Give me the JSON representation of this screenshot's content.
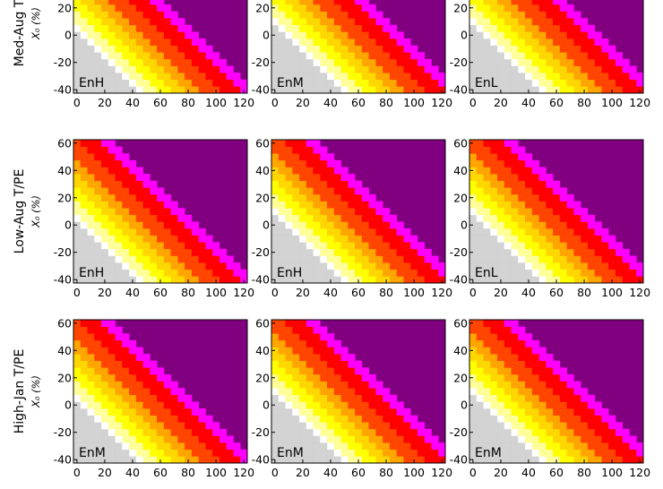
{
  "colors": {
    "gray": "#d3d3d3",
    "white": "#ffffff",
    "light_yellow": "#ffff99",
    "yellow": "#ffff00",
    "gold": "#ffd700",
    "orange": "#ffa500",
    "red_orange": "#ff4500",
    "red": "#ff0000",
    "magenta": "#ff00ff",
    "purple": "#800080"
  },
  "axis": {
    "x_ticks": [
      "0",
      "20",
      "40",
      "60",
      "80",
      "100",
      "120"
    ],
    "y_ticks": [
      "-40",
      "-20",
      "0",
      "20",
      "40",
      "60"
    ],
    "xlim": [
      -2.5,
      122.5
    ],
    "ylim": [
      -42.5,
      62.5
    ]
  },
  "rows": [
    {
      "label": "Med-Aug T/PE",
      "sublabel": "X₀ (%)",
      "panels": [
        {
          "tag": "EnH",
          "shift": 0
        },
        {
          "tag": "EnM",
          "shift": 1
        },
        {
          "tag": "EnL",
          "shift": 2
        }
      ]
    },
    {
      "label": "Low-Aug T/PE",
      "sublabel": "X₀ (%)",
      "panels": [
        {
          "tag": "EnH",
          "shift": 0
        },
        {
          "tag": "EnH",
          "shift": 1
        },
        {
          "tag": "EnL",
          "shift": 2
        }
      ]
    },
    {
      "label": "High-Jan T/PE",
      "sublabel": "X₀ (%)",
      "panels": [
        {
          "tag": "EnM",
          "shift": 0
        },
        {
          "tag": "EnM",
          "shift": 1
        },
        {
          "tag": "EnM",
          "shift": 1
        }
      ]
    }
  ],
  "chart_data": {
    "type": "heatmap",
    "panel_grid": [
      3,
      3
    ],
    "x_range": [
      0,
      120
    ],
    "y_range": [
      -40,
      60
    ],
    "cell_step": 5,
    "encoding": "color class depends on x + y; gray where x + y < ~5, purple where x + y > ~90",
    "color_bands": [
      {
        "color": "gray",
        "sum_max": 5
      },
      {
        "color": "white",
        "sum_max": 10
      },
      {
        "color": "light_yellow",
        "sum_max": 20
      },
      {
        "color": "yellow",
        "sum_max": 30
      },
      {
        "color": "gold",
        "sum_max": 40
      },
      {
        "color": "orange",
        "sum_max": 50
      },
      {
        "color": "red_orange",
        "sum_max": 65
      },
      {
        "color": "red",
        "sum_max": 80
      },
      {
        "color": "magenta",
        "sum_max": 90
      },
      {
        "color": "purple",
        "sum_max": 9999
      }
    ]
  }
}
